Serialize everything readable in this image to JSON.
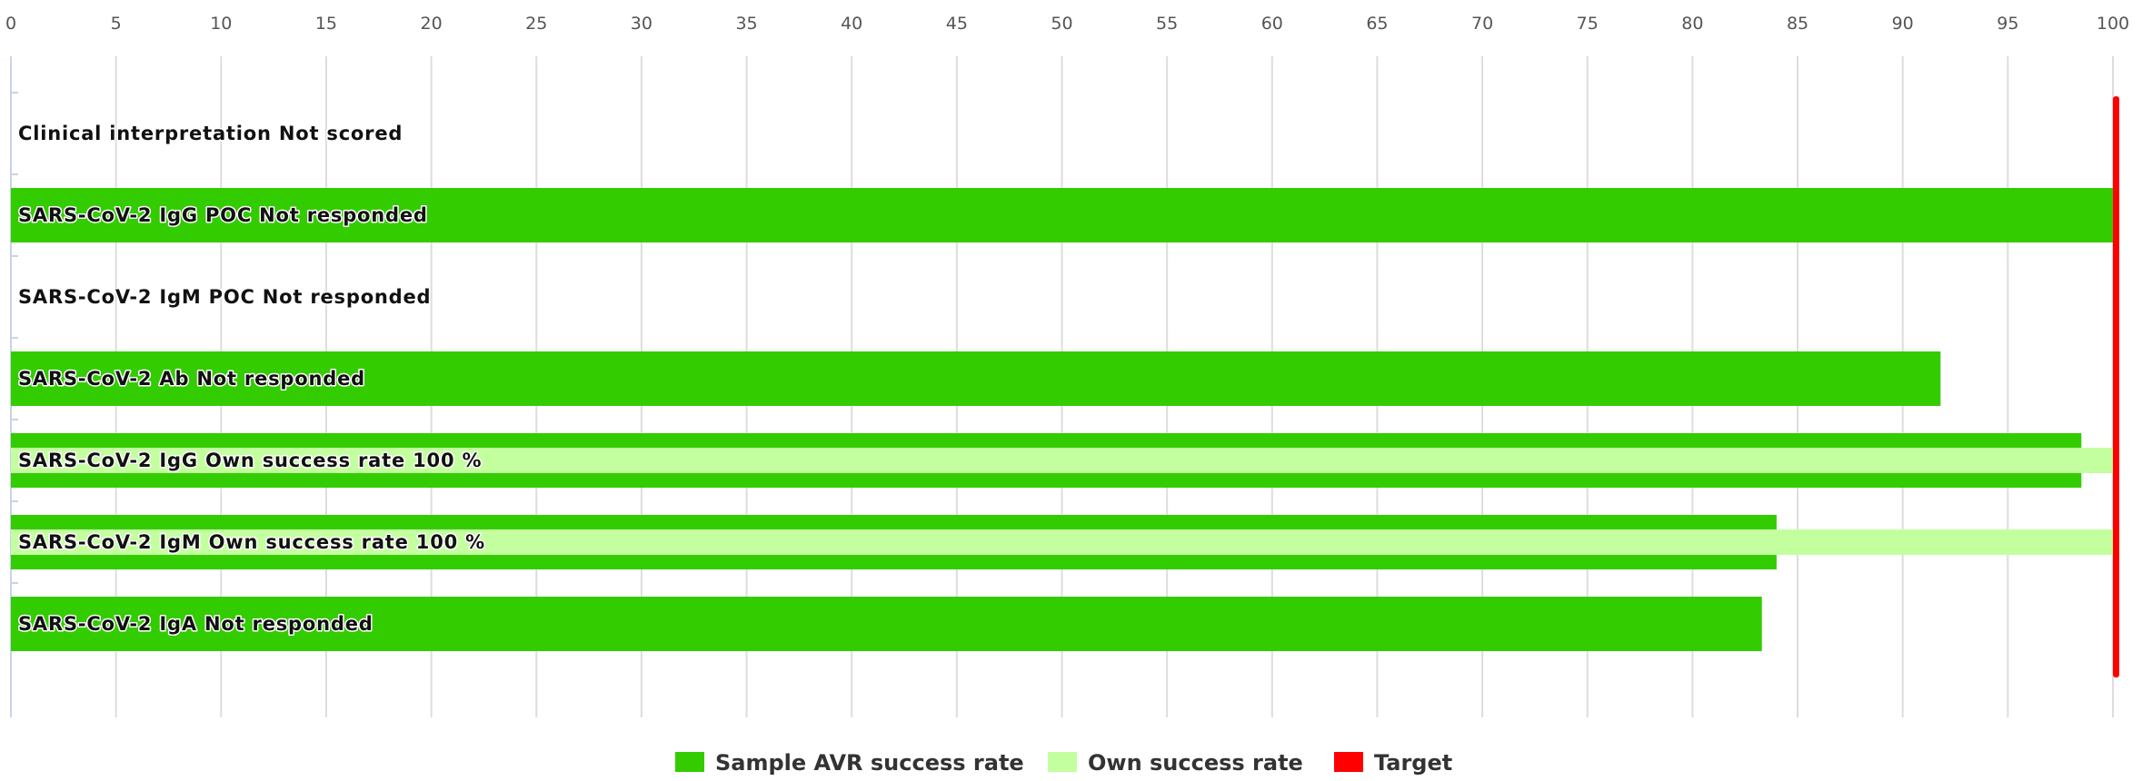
{
  "chart_data": {
    "type": "bar",
    "orientation": "horizontal",
    "categories": [
      "Clinical interpretation Not scored",
      "SARS-CoV-2 IgG POC Not responded",
      "SARS-CoV-2 IgM POC Not responded",
      "SARS-CoV-2 Ab Not responded",
      "SARS-CoV-2 IgG Own success rate 100 %",
      "SARS-CoV-2 IgM Own success rate 100 %",
      "SARS-CoV-2 IgA Not responded"
    ],
    "series": [
      {
        "name": "Sample AVR success rate",
        "color": "#33cc00",
        "values": [
          null,
          100,
          null,
          91.8,
          98.5,
          84,
          83.3
        ]
      },
      {
        "name": "Own success rate",
        "color": "#c3ff9f",
        "values": [
          null,
          null,
          null,
          null,
          100,
          100,
          null
        ]
      }
    ],
    "target": {
      "name": "Target",
      "color": "#ff0000",
      "value": 100
    },
    "xlim": [
      0,
      100
    ],
    "xticks": [
      0,
      5,
      10,
      15,
      20,
      25,
      30,
      35,
      40,
      45,
      50,
      55,
      60,
      65,
      70,
      75,
      80,
      85,
      90,
      95,
      100
    ],
    "grid": true,
    "legend": "bottom-center"
  }
}
